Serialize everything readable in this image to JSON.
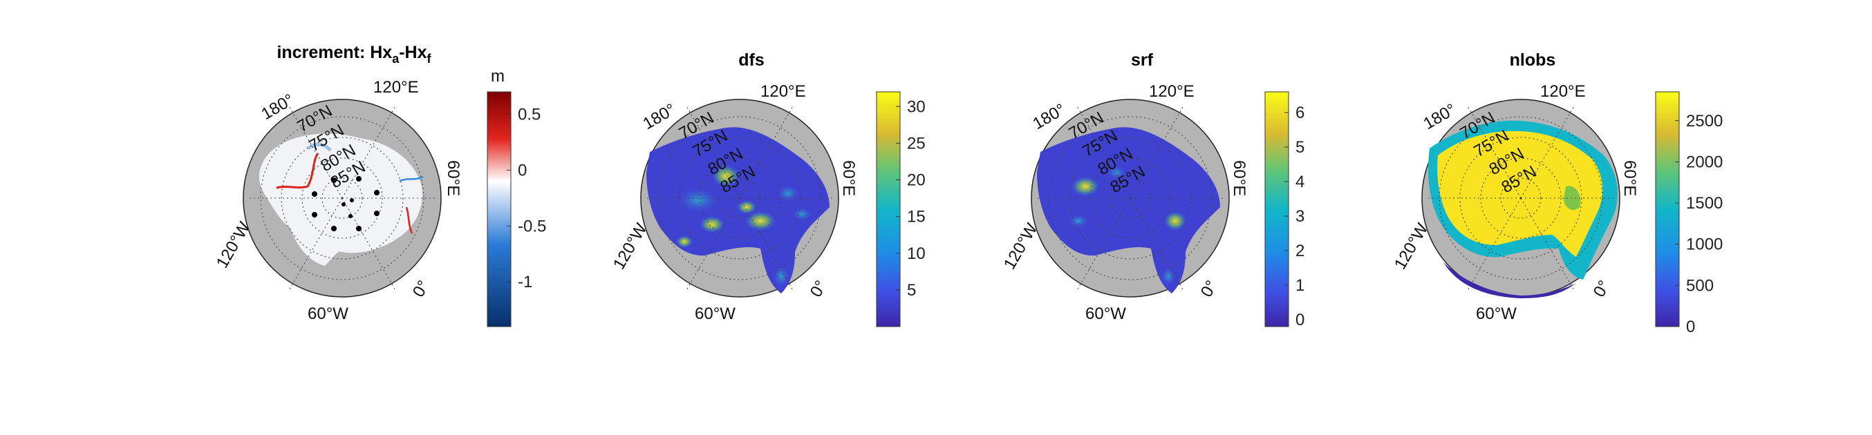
{
  "colors": {
    "ocean_bg": "#f2f2f2",
    "land": "#b4b4b4",
    "graticule": "#444444",
    "diverging_low": "#08306b",
    "diverging_mid": "#ffffff",
    "diverging_high": "#7f0000",
    "parula_low": "#3e26a8",
    "parula_high": "#f9fb15"
  },
  "chart_data": [
    {
      "type": "heatmap",
      "projection": "polar stereographic (north)",
      "title": "increment: Hx",
      "title_sub_a": "a",
      "title_mid": "-Hx",
      "title_sub_f": "f",
      "colorbar": {
        "label": "m",
        "colormap": "diverging blue-white-red",
        "range": [
          -1.4,
          0.7
        ],
        "ticks": [
          0.5,
          0,
          -0.5,
          -1
        ],
        "tick_labels": [
          "0.5",
          "0",
          "-0.5",
          "-1"
        ]
      },
      "graticule_labels": [
        "180°",
        "70°N",
        "75°N",
        "80°N",
        "85°N",
        "120°E",
        "60°E",
        "120°W",
        "60°W",
        "0°"
      ],
      "features": [
        "near-zero increments over most of the Arctic Ocean",
        "red increments along Siberian coast",
        "blue increments near Barents/Kara",
        "black observation points near the pole"
      ]
    },
    {
      "type": "heatmap",
      "projection": "polar stereographic (north)",
      "title": "dfs",
      "colorbar": {
        "label": "",
        "colormap": "parula",
        "range": [
          0,
          32
        ],
        "ticks": [
          30,
          25,
          20,
          15,
          10,
          5
        ],
        "tick_labels": [
          "30",
          "25",
          "20",
          "15",
          "10",
          "5"
        ]
      },
      "graticule_labels": [
        "180°",
        "70°N",
        "75°N",
        "80°N",
        "85°N",
        "120°E",
        "60°E",
        "120°W",
        "60°W",
        "0°"
      ]
    },
    {
      "type": "heatmap",
      "projection": "polar stereographic (north)",
      "title": "srf",
      "colorbar": {
        "label": "",
        "colormap": "parula",
        "range": [
          -0.2,
          6.6
        ],
        "ticks": [
          6,
          5,
          4,
          3,
          2,
          1,
          0
        ],
        "tick_labels": [
          "6",
          "5",
          "4",
          "3",
          "2",
          "1",
          "0"
        ]
      },
      "graticule_labels": [
        "180°",
        "70°N",
        "75°N",
        "80°N",
        "85°N",
        "120°E",
        "60°E",
        "120°W",
        "60°W",
        "0°"
      ]
    },
    {
      "type": "heatmap",
      "projection": "polar stereographic (north)",
      "title": "nlobs",
      "colorbar": {
        "label": "",
        "colormap": "parula",
        "range": [
          0,
          2850
        ],
        "ticks": [
          2500,
          2000,
          1500,
          1000,
          500,
          0
        ],
        "tick_labels": [
          "2500",
          "2000",
          "1500",
          "1000",
          "500",
          "0"
        ]
      },
      "graticule_labels": [
        "180°",
        "70°N",
        "75°N",
        "80°N",
        "85°N",
        "120°E",
        "60°E",
        "120°W",
        "60°W",
        "0°"
      ]
    }
  ]
}
